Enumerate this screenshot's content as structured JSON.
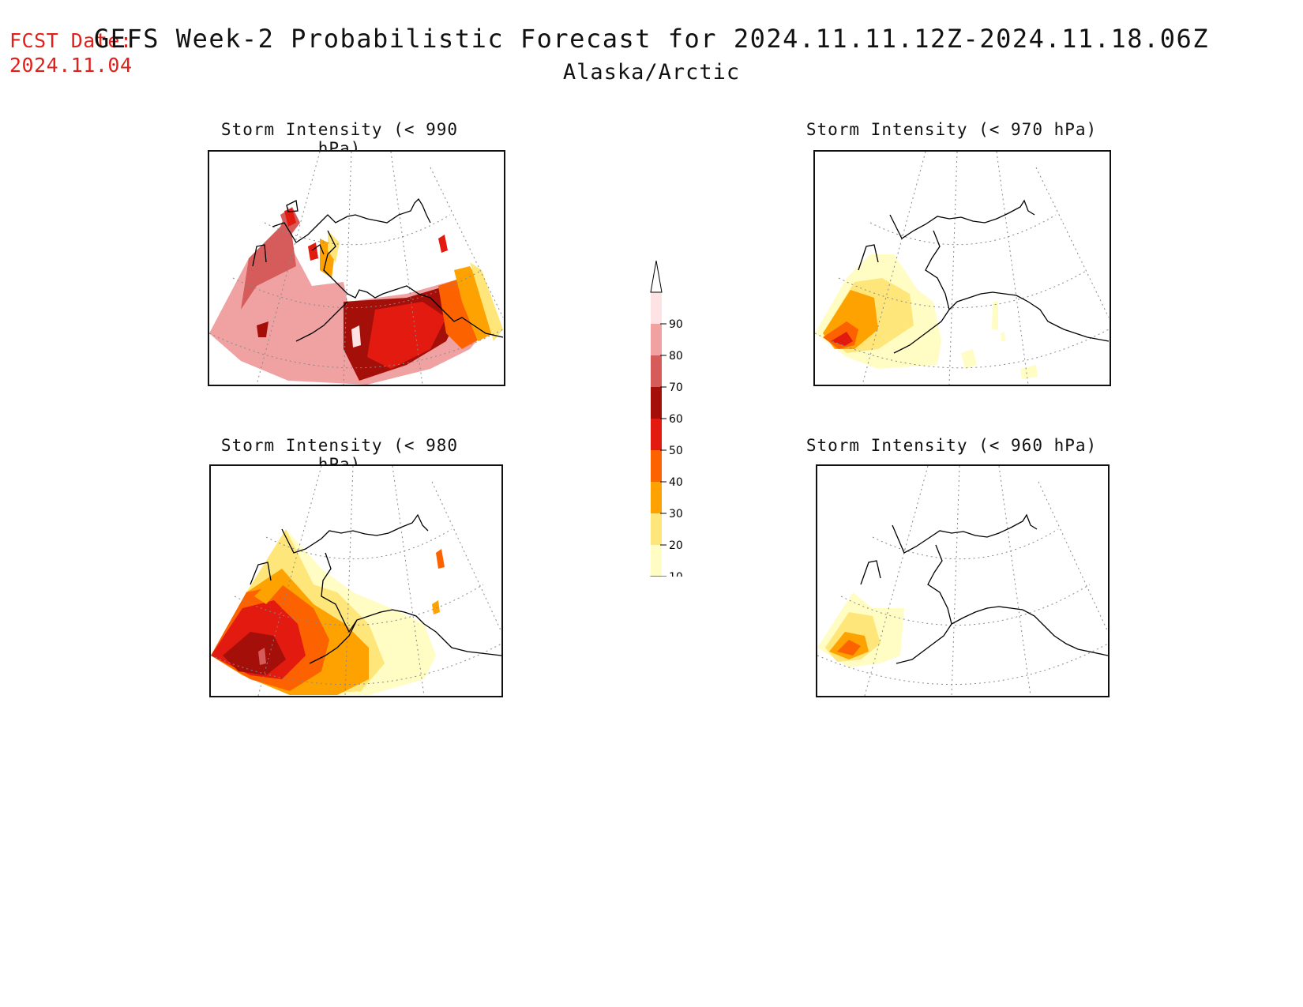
{
  "fcst_date": {
    "label": "FCST Date:",
    "value": "2024.11.04"
  },
  "title": "GEFS Week-2 Probabilistic Forecast for 2024.11.11.12Z-2024.11.18.06Z",
  "region": "Alaska/Arctic",
  "panels": [
    {
      "id": "p990",
      "title": "Storm Intensity (< 990 hPa)"
    },
    {
      "id": "p970",
      "title": "Storm Intensity (< 970 hPa)"
    },
    {
      "id": "p980",
      "title": "Storm Intensity (< 980 hPa)"
    },
    {
      "id": "p960",
      "title": "Storm Intensity (< 960 hPa)"
    }
  ],
  "legend": {
    "levels": [
      "10",
      "20",
      "30",
      "40",
      "50",
      "60",
      "70",
      "80",
      "90"
    ],
    "colors": [
      "#fffcc4",
      "#fee67a",
      "#fda200",
      "#fc6300",
      "#e31a0f",
      "#a50f0a",
      "#d65b5b",
      "#f0a2a2",
      "#fde3e3"
    ]
  }
}
